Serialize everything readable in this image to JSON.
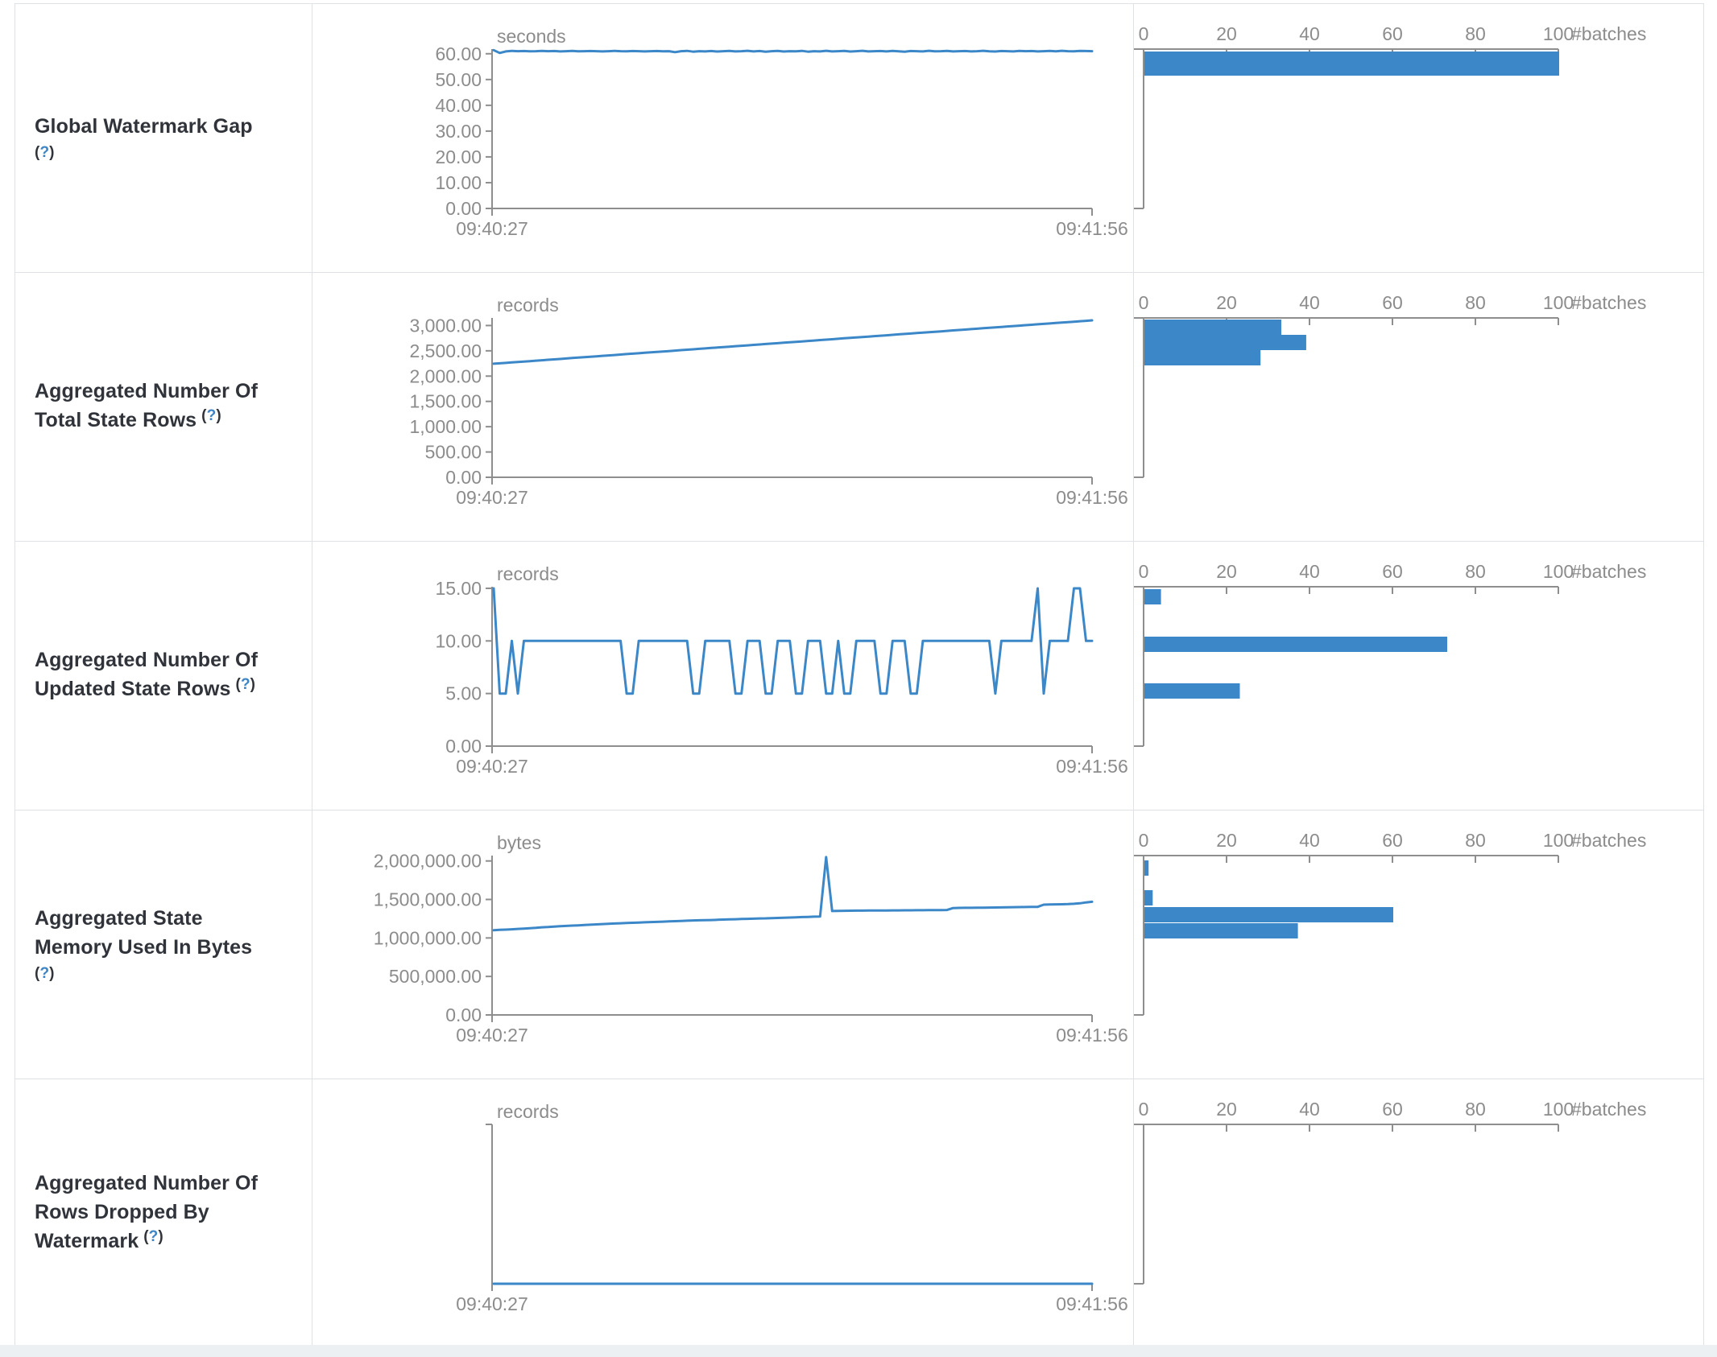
{
  "colors": {
    "accent": "#3b87c8",
    "axis": "#8e8e8e",
    "tick_text": "#8c8c8c",
    "title_text": "#30343a",
    "help_question": "#3d85c6",
    "border": "#dee2e6",
    "below_table_bg": "#edf0f2"
  },
  "axis_common": {
    "x_start_label": "09:40:27",
    "x_end_label": "09:41:56",
    "hist_tick_labels": [
      "0",
      "20",
      "40",
      "60",
      "80",
      "100"
    ],
    "hist_unit_label": "#batches"
  },
  "chart_data": {
    "note": "see rows[] – each row holds one timeline line chart and one batch-count histogram"
  },
  "rows": [
    {
      "title_lines": [
        "Global Watermark Gap"
      ],
      "help_label": "(?)",
      "help_own_line": true,
      "unit": "seconds",
      "type": "line",
      "ymax": 61.8,
      "y_ticks": [
        {
          "label": "60.00",
          "v": 60
        },
        {
          "label": "50.00",
          "v": 50
        },
        {
          "label": "40.00",
          "v": 40
        },
        {
          "label": "30.00",
          "v": 30
        },
        {
          "label": "20.00",
          "v": 20
        },
        {
          "label": "10.00",
          "v": 10
        },
        {
          "label": "0.00",
          "v": 0
        }
      ],
      "values": [
        61.4,
        60.3,
        60.9,
        61.1,
        61.0,
        61.05,
        60.95,
        61.0,
        61.1,
        61.0,
        61.05,
        60.9,
        61.0,
        61.1,
        60.95,
        61.0,
        61.05,
        61.0,
        60.9,
        61.0,
        61.1,
        61.0,
        60.95,
        61.05,
        61.0,
        60.9,
        61.0,
        61.05,
        60.95,
        61.0,
        60.6,
        61.0,
        61.1,
        60.8,
        61.0,
        60.9,
        61.05,
        60.85,
        61.0,
        61.1,
        60.9,
        61.0,
        61.15,
        60.9,
        61.05,
        60.8,
        61.0,
        61.1,
        60.85,
        61.0,
        60.95,
        61.1,
        60.8,
        61.0,
        60.9,
        61.15,
        60.9,
        61.0,
        61.1,
        60.85,
        61.0,
        61.15,
        60.9,
        61.0,
        61.05,
        60.9,
        61.1,
        60.95,
        60.8,
        61.05,
        61.0,
        60.9,
        61.15,
        60.95,
        61.0,
        61.1,
        60.9,
        61.0,
        61.05,
        60.9,
        61.0,
        61.15,
        60.95,
        60.85,
        61.05,
        61.0,
        60.9,
        61.1,
        61.0,
        61.05,
        60.9,
        61.0,
        61.1,
        60.95,
        61.15,
        61.0,
        60.95,
        61.1,
        61.05,
        61.0
      ],
      "histogram_bars": [
        {
          "count": 100,
          "top": 3,
          "h": 30
        }
      ]
    },
    {
      "title_lines": [
        "Aggregated Number Of",
        "Total State Rows"
      ],
      "help_label": "(?)",
      "help_own_line": false,
      "unit": "records",
      "type": "line",
      "ymax": 3150,
      "y_ticks": [
        {
          "label": "3,000.00",
          "v": 3000
        },
        {
          "label": "2,500.00",
          "v": 2500
        },
        {
          "label": "2,000.00",
          "v": 2000
        },
        {
          "label": "1,500.00",
          "v": 1500
        },
        {
          "label": "1,000.00",
          "v": 1000
        },
        {
          "label": "500.00",
          "v": 500
        },
        {
          "label": "0.00",
          "v": 0
        }
      ],
      "values": [
        2244,
        2253,
        2261,
        2270,
        2279,
        2287,
        2296,
        2305,
        2313,
        2322,
        2331,
        2339,
        2348,
        2357,
        2365,
        2374,
        2383,
        2391,
        2400,
        2409,
        2417,
        2426,
        2435,
        2443,
        2452,
        2461,
        2469,
        2478,
        2487,
        2495,
        2504,
        2513,
        2521,
        2530,
        2539,
        2547,
        2556,
        2565,
        2573,
        2582,
        2591,
        2599,
        2608,
        2617,
        2625,
        2634,
        2643,
        2651,
        2660,
        2669,
        2677,
        2686,
        2695,
        2703,
        2712,
        2721,
        2729,
        2738,
        2747,
        2755,
        2764,
        2773,
        2781,
        2790,
        2799,
        2807,
        2816,
        2825,
        2833,
        2842,
        2851,
        2859,
        2868,
        2877,
        2885,
        2894,
        2903,
        2911,
        2920,
        2929,
        2937,
        2946,
        2955,
        2963,
        2972,
        2981,
        2989,
        2998,
        3007,
        3015,
        3024,
        3033,
        3041,
        3050,
        3059,
        3067,
        3076,
        3085,
        3093,
        3102
      ],
      "histogram_bars": [
        {
          "count": 33,
          "top": 2,
          "h": 19
        },
        {
          "count": 39,
          "top": 21,
          "h": 19
        },
        {
          "count": 28,
          "top": 40,
          "h": 19
        }
      ]
    },
    {
      "title_lines": [
        "Aggregated Number Of",
        "Updated State Rows"
      ],
      "help_label": "(?)",
      "help_own_line": false,
      "unit": "records",
      "type": "line",
      "ymax": 15.15,
      "y_ticks": [
        {
          "label": "15.00",
          "v": 15
        },
        {
          "label": "10.00",
          "v": 10
        },
        {
          "label": "5.00",
          "v": 5
        },
        {
          "label": "0.00",
          "v": 0
        }
      ],
      "values": [
        15,
        5,
        5,
        10,
        5,
        10,
        10,
        10,
        10,
        10,
        10,
        10,
        10,
        10,
        10,
        10,
        10,
        10,
        10,
        10,
        10,
        10,
        5,
        5,
        10,
        10,
        10,
        10,
        10,
        10,
        10,
        10,
        10,
        5,
        5,
        10,
        10,
        10,
        10,
        10,
        5,
        5,
        10,
        10,
        10,
        5,
        5,
        10,
        10,
        10,
        5,
        5,
        10,
        10,
        10,
        5,
        5,
        10,
        5,
        5,
        10,
        10,
        10,
        10,
        5,
        5,
        10,
        10,
        10,
        5,
        5,
        10,
        10,
        10,
        10,
        10,
        10,
        10,
        10,
        10,
        10,
        10,
        10,
        5,
        10,
        10,
        10,
        10,
        10,
        10,
        15,
        5,
        10,
        10,
        10,
        10,
        15,
        15,
        10,
        10
      ],
      "histogram_bars": [
        {
          "count": 4,
          "top": 3,
          "h": 19
        },
        {
          "count": 73,
          "top": 62,
          "h": 19
        },
        {
          "count": 23,
          "top": 120,
          "h": 19
        }
      ]
    },
    {
      "title_lines": [
        "Aggregated State",
        "Memory Used In Bytes"
      ],
      "help_label": "(?)",
      "help_own_line": true,
      "unit": "bytes",
      "type": "line",
      "ymax": 2070000,
      "y_ticks": [
        {
          "label": "2,000,000.00",
          "v": 2000000
        },
        {
          "label": "1,500,000.00",
          "v": 1500000
        },
        {
          "label": "1,000,000.00",
          "v": 1000000
        },
        {
          "label": "500,000.00",
          "v": 500000
        },
        {
          "label": "0.00",
          "v": 0
        }
      ],
      "values": [
        1100000,
        1105000,
        1108000,
        1112000,
        1118000,
        1122000,
        1126000,
        1131000,
        1138000,
        1142000,
        1147000,
        1152000,
        1156000,
        1160000,
        1164000,
        1168000,
        1172000,
        1176000,
        1180000,
        1184000,
        1188000,
        1191000,
        1194000,
        1197000,
        1200000,
        1203000,
        1206000,
        1209000,
        1212000,
        1215000,
        1218000,
        1221000,
        1224000,
        1227000,
        1229000,
        1231000,
        1233000,
        1236000,
        1239000,
        1241000,
        1243000,
        1246000,
        1248000,
        1250000,
        1253000,
        1255000,
        1258000,
        1260000,
        1263000,
        1265000,
        1268000,
        1271000,
        1273000,
        1276000,
        1279000,
        2050000,
        1350000,
        1352000,
        1353000,
        1354000,
        1355000,
        1355000,
        1356000,
        1356000,
        1357000,
        1357000,
        1358000,
        1358000,
        1359000,
        1359000,
        1360000,
        1360000,
        1361000,
        1361000,
        1362000,
        1363000,
        1388000,
        1390000,
        1391000,
        1392000,
        1393000,
        1394000,
        1395000,
        1396000,
        1397000,
        1398000,
        1400000,
        1401000,
        1402000,
        1403000,
        1404000,
        1432000,
        1434000,
        1436000,
        1438000,
        1440000,
        1444000,
        1450000,
        1462000,
        1470000
      ],
      "histogram_bars": [
        {
          "count": 1,
          "top": 6,
          "h": 19
        },
        {
          "count": 2,
          "top": 43,
          "h": 19
        },
        {
          "count": 60,
          "top": 64,
          "h": 19
        },
        {
          "count": 37,
          "top": 84,
          "h": 19
        }
      ]
    },
    {
      "title_lines": [
        "Aggregated Number Of",
        "Rows Dropped By",
        "Watermark"
      ],
      "help_label": "(?)",
      "help_own_line": false,
      "unit": "records",
      "type": "line",
      "ymax": 1,
      "y_ticks": [],
      "values": [
        0,
        0,
        0,
        0,
        0,
        0,
        0,
        0,
        0,
        0,
        0,
        0,
        0,
        0,
        0,
        0,
        0,
        0,
        0,
        0,
        0,
        0,
        0,
        0,
        0,
        0,
        0,
        0,
        0,
        0,
        0,
        0,
        0,
        0,
        0,
        0,
        0,
        0,
        0,
        0,
        0,
        0,
        0,
        0,
        0,
        0,
        0,
        0,
        0,
        0,
        0,
        0,
        0,
        0,
        0,
        0,
        0,
        0,
        0,
        0,
        0,
        0,
        0,
        0,
        0,
        0,
        0,
        0,
        0,
        0,
        0,
        0,
        0,
        0,
        0,
        0,
        0,
        0,
        0,
        0,
        0,
        0,
        0,
        0,
        0,
        0,
        0,
        0,
        0,
        0,
        0,
        0,
        0,
        0,
        0,
        0,
        0,
        0,
        0,
        0
      ],
      "histogram_bars": []
    }
  ]
}
